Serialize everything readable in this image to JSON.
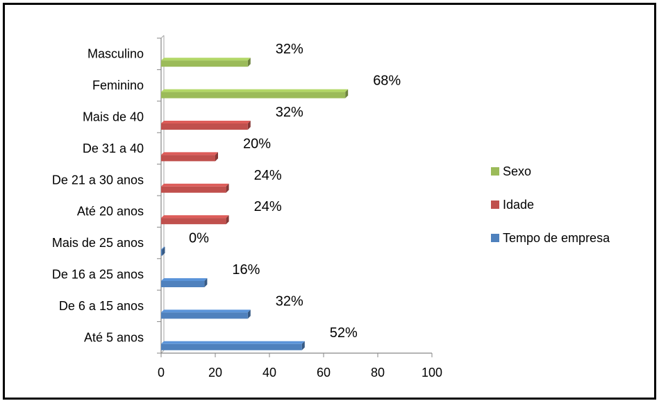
{
  "chart_data": {
    "type": "bar",
    "orientation": "horizontal",
    "categories": [
      "Masculino",
      "Feminino",
      "Mais de 40",
      "De 31 a 40",
      "De 21 a 30 anos",
      "Até 20 anos",
      "Mais de 25 anos",
      "De 16 a 25 anos",
      "De 6 a 15 anos",
      "Até 5 anos"
    ],
    "series": [
      {
        "name": "Sexo",
        "color": "#9BBB59",
        "points": [
          {
            "category": "Masculino",
            "value": 32,
            "label": "32%"
          },
          {
            "category": "Feminino",
            "value": 68,
            "label": "68%"
          }
        ]
      },
      {
        "name": "Idade",
        "color": "#C0504D",
        "points": [
          {
            "category": "Mais de 40",
            "value": 32,
            "label": "32%"
          },
          {
            "category": "De 31 a 40",
            "value": 20,
            "label": "20%"
          },
          {
            "category": "De 21 a 30 anos",
            "value": 24,
            "label": "24%"
          },
          {
            "category": "Até 20 anos",
            "value": 24,
            "label": "24%"
          }
        ]
      },
      {
        "name": "Tempo de empresa",
        "color": "#4F81BD",
        "points": [
          {
            "category": "Mais de 25 anos",
            "value": 0,
            "label": "0%"
          },
          {
            "category": "De 16 a 25 anos",
            "value": 16,
            "label": "16%"
          },
          {
            "category": "De 6 a 15 anos",
            "value": 32,
            "label": "32%"
          },
          {
            "category": "Até 5 anos",
            "value": 52,
            "label": "52%"
          }
        ]
      }
    ],
    "x_ticks": [
      "0",
      "20",
      "40",
      "60",
      "80",
      "100"
    ],
    "xlim": [
      0,
      100
    ],
    "grid": false,
    "legend_position": "right",
    "legend": [
      "Sexo",
      "Idade",
      "Tempo de empresa"
    ],
    "title": "",
    "xlabel": "",
    "ylabel": ""
  }
}
